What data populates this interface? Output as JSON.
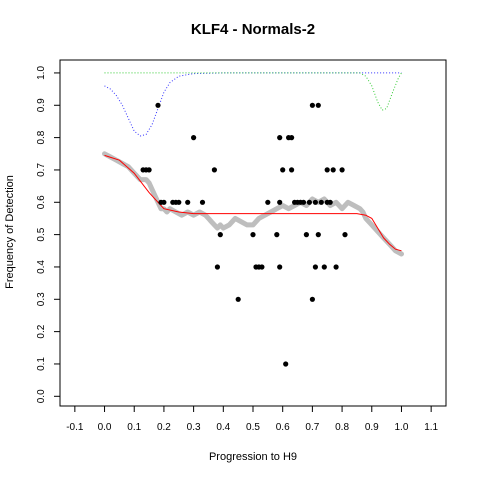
{
  "chart_data": {
    "type": "scatter",
    "title": "KLF4 - Normals-2",
    "xlabel": "Progression to H9",
    "ylabel": "Frequency of Detection",
    "xlim": [
      -0.15,
      1.15
    ],
    "ylim": [
      -0.03,
      1.04
    ],
    "xticks": [
      -0.1,
      0.0,
      0.1,
      0.2,
      0.3,
      0.4,
      0.5,
      0.6,
      0.7,
      0.8,
      0.9,
      1.0,
      1.1
    ],
    "xtick_labels": [
      "-0.1",
      "0.0",
      "0.1",
      "0.2",
      "0.3",
      "0.4",
      "0.5",
      "0.6",
      "0.7",
      "0.8",
      "0.9",
      "1.0",
      "1.1"
    ],
    "yticks": [
      0.0,
      0.1,
      0.2,
      0.3,
      0.4,
      0.5,
      0.6,
      0.7,
      0.8,
      0.9,
      1.0
    ],
    "ytick_labels": [
      "0.0",
      "0.1",
      "0.2",
      "0.3",
      "0.4",
      "0.5",
      "0.6",
      "0.7",
      "0.8",
      "0.9",
      "1.0"
    ],
    "grid": false,
    "colors": {
      "points": "#000000",
      "smooth": "#bebebe",
      "fit": "#ff0000",
      "blue_curve": "#3333ff",
      "green_curve": "#33cc33"
    },
    "points": [
      {
        "x": 0.13,
        "y": 0.7
      },
      {
        "x": 0.14,
        "y": 0.7
      },
      {
        "x": 0.15,
        "y": 0.7
      },
      {
        "x": 0.18,
        "y": 0.9
      },
      {
        "x": 0.19,
        "y": 0.6
      },
      {
        "x": 0.2,
        "y": 0.6
      },
      {
        "x": 0.23,
        "y": 0.6
      },
      {
        "x": 0.24,
        "y": 0.6
      },
      {
        "x": 0.25,
        "y": 0.6
      },
      {
        "x": 0.28,
        "y": 0.6
      },
      {
        "x": 0.3,
        "y": 0.8
      },
      {
        "x": 0.33,
        "y": 0.6
      },
      {
        "x": 0.37,
        "y": 0.7
      },
      {
        "x": 0.38,
        "y": 0.4
      },
      {
        "x": 0.39,
        "y": 0.5
      },
      {
        "x": 0.45,
        "y": 0.3
      },
      {
        "x": 0.5,
        "y": 0.5
      },
      {
        "x": 0.51,
        "y": 0.4
      },
      {
        "x": 0.52,
        "y": 0.4
      },
      {
        "x": 0.53,
        "y": 0.4
      },
      {
        "x": 0.55,
        "y": 0.6
      },
      {
        "x": 0.58,
        "y": 0.5
      },
      {
        "x": 0.59,
        "y": 0.8
      },
      {
        "x": 0.59,
        "y": 0.6
      },
      {
        "x": 0.59,
        "y": 0.4
      },
      {
        "x": 0.6,
        "y": 0.7
      },
      {
        "x": 0.61,
        "y": 0.1
      },
      {
        "x": 0.62,
        "y": 0.8
      },
      {
        "x": 0.63,
        "y": 0.8
      },
      {
        "x": 0.63,
        "y": 0.7
      },
      {
        "x": 0.64,
        "y": 0.6
      },
      {
        "x": 0.65,
        "y": 0.6
      },
      {
        "x": 0.66,
        "y": 0.6
      },
      {
        "x": 0.67,
        "y": 0.6
      },
      {
        "x": 0.68,
        "y": 0.5
      },
      {
        "x": 0.69,
        "y": 0.6
      },
      {
        "x": 0.7,
        "y": 0.9
      },
      {
        "x": 0.7,
        "y": 0.3
      },
      {
        "x": 0.71,
        "y": 0.4
      },
      {
        "x": 0.71,
        "y": 0.6
      },
      {
        "x": 0.72,
        "y": 0.9
      },
      {
        "x": 0.72,
        "y": 0.5
      },
      {
        "x": 0.73,
        "y": 0.6
      },
      {
        "x": 0.74,
        "y": 0.4
      },
      {
        "x": 0.75,
        "y": 0.7
      },
      {
        "x": 0.75,
        "y": 0.6
      },
      {
        "x": 0.76,
        "y": 0.6
      },
      {
        "x": 0.77,
        "y": 0.7
      },
      {
        "x": 0.78,
        "y": 0.4
      },
      {
        "x": 0.8,
        "y": 0.7
      },
      {
        "x": 0.81,
        "y": 0.5
      }
    ],
    "smooth_series": [
      [
        0.0,
        0.75
      ],
      [
        0.02,
        0.74
      ],
      [
        0.04,
        0.73
      ],
      [
        0.06,
        0.72
      ],
      [
        0.08,
        0.71
      ],
      [
        0.1,
        0.69
      ],
      [
        0.12,
        0.67
      ],
      [
        0.14,
        0.67
      ],
      [
        0.15,
        0.66
      ],
      [
        0.16,
        0.64
      ],
      [
        0.17,
        0.62
      ],
      [
        0.18,
        0.6
      ],
      [
        0.19,
        0.58
      ],
      [
        0.2,
        0.58
      ],
      [
        0.21,
        0.57
      ],
      [
        0.22,
        0.58
      ],
      [
        0.24,
        0.57
      ],
      [
        0.26,
        0.56
      ],
      [
        0.28,
        0.57
      ],
      [
        0.3,
        0.56
      ],
      [
        0.32,
        0.57
      ],
      [
        0.34,
        0.56
      ],
      [
        0.35,
        0.55
      ],
      [
        0.36,
        0.54
      ],
      [
        0.37,
        0.53
      ],
      [
        0.38,
        0.52
      ],
      [
        0.39,
        0.53
      ],
      [
        0.4,
        0.52
      ],
      [
        0.42,
        0.53
      ],
      [
        0.44,
        0.55
      ],
      [
        0.46,
        0.54
      ],
      [
        0.48,
        0.53
      ],
      [
        0.5,
        0.53
      ],
      [
        0.52,
        0.55
      ],
      [
        0.54,
        0.56
      ],
      [
        0.56,
        0.57
      ],
      [
        0.58,
        0.58
      ],
      [
        0.6,
        0.59
      ],
      [
        0.62,
        0.58
      ],
      [
        0.64,
        0.59
      ],
      [
        0.66,
        0.6
      ],
      [
        0.68,
        0.59
      ],
      [
        0.7,
        0.61
      ],
      [
        0.72,
        0.6
      ],
      [
        0.74,
        0.61
      ],
      [
        0.76,
        0.59
      ],
      [
        0.78,
        0.6
      ],
      [
        0.8,
        0.58
      ],
      [
        0.82,
        0.6
      ],
      [
        0.84,
        0.59
      ],
      [
        0.86,
        0.58
      ],
      [
        0.87,
        0.57
      ],
      [
        0.88,
        0.55
      ],
      [
        0.9,
        0.53
      ],
      [
        0.92,
        0.51
      ],
      [
        0.94,
        0.49
      ],
      [
        0.96,
        0.47
      ],
      [
        0.98,
        0.45
      ],
      [
        1.0,
        0.44
      ]
    ],
    "fit_series": [
      [
        0.0,
        0.745
      ],
      [
        0.05,
        0.73
      ],
      [
        0.1,
        0.69
      ],
      [
        0.15,
        0.63
      ],
      [
        0.18,
        0.6
      ],
      [
        0.2,
        0.58
      ],
      [
        0.25,
        0.57
      ],
      [
        0.3,
        0.565
      ],
      [
        0.4,
        0.565
      ],
      [
        0.5,
        0.565
      ],
      [
        0.6,
        0.565
      ],
      [
        0.7,
        0.565
      ],
      [
        0.8,
        0.565
      ],
      [
        0.85,
        0.565
      ],
      [
        0.88,
        0.56
      ],
      [
        0.9,
        0.55
      ],
      [
        0.92,
        0.52
      ],
      [
        0.94,
        0.49
      ],
      [
        0.96,
        0.47
      ],
      [
        0.98,
        0.455
      ],
      [
        1.0,
        0.45
      ]
    ],
    "blue_series": [
      [
        0.0,
        0.96
      ],
      [
        0.02,
        0.95
      ],
      [
        0.04,
        0.93
      ],
      [
        0.06,
        0.9
      ],
      [
        0.08,
        0.86
      ],
      [
        0.1,
        0.82
      ],
      [
        0.12,
        0.805
      ],
      [
        0.14,
        0.81
      ],
      [
        0.16,
        0.84
      ],
      [
        0.18,
        0.89
      ],
      [
        0.2,
        0.94
      ],
      [
        0.22,
        0.97
      ],
      [
        0.25,
        0.99
      ],
      [
        0.3,
        0.998
      ],
      [
        0.4,
        1.0
      ],
      [
        1.0,
        1.0
      ]
    ],
    "green_series": [
      [
        0.0,
        1.0
      ],
      [
        0.86,
        1.0
      ],
      [
        0.88,
        0.99
      ],
      [
        0.9,
        0.96
      ],
      [
        0.92,
        0.91
      ],
      [
        0.935,
        0.885
      ],
      [
        0.95,
        0.89
      ],
      [
        0.97,
        0.94
      ],
      [
        0.99,
        0.985
      ],
      [
        1.0,
        1.0
      ]
    ]
  }
}
